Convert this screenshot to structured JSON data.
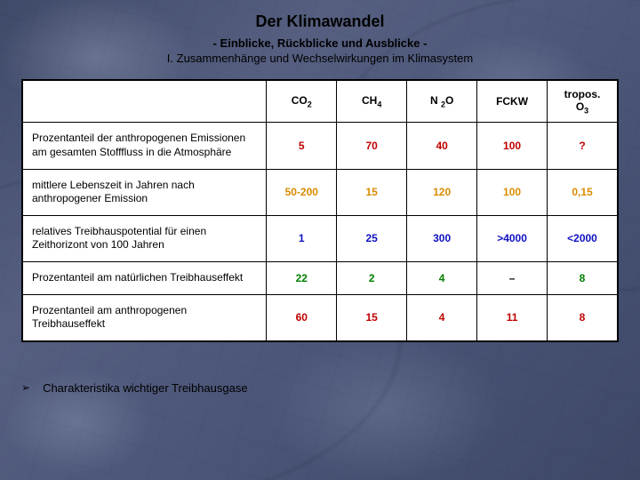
{
  "header": {
    "title": "Der Klimawandel",
    "subtitle": "- Einblicke, Rückblicke und Ausblicke -",
    "chapter": "I. Zusammenhänge und Wechselwirkungen im Klimasystem"
  },
  "table": {
    "columns": [
      {
        "label": "",
        "sub": ""
      },
      {
        "label": "CO",
        "sub": "2"
      },
      {
        "label": "CH",
        "sub": "4"
      },
      {
        "label": "N ",
        "sub": "2",
        "tail": "O"
      },
      {
        "label": "FCKW",
        "sub": ""
      },
      {
        "label": "tropos.",
        "sub2line": true,
        "tail": "O",
        "sub": "3"
      }
    ],
    "rows": [
      {
        "label": "Prozentanteil der anthropogenen Emissionen am gesamten Stofffluss in die Atmosphäre",
        "cells": [
          {
            "v": "5",
            "color": "#c00000"
          },
          {
            "v": "70",
            "color": "#c00000"
          },
          {
            "v": "40",
            "color": "#c00000"
          },
          {
            "v": "100",
            "color": "#c00000"
          },
          {
            "v": "?",
            "color": "#c00000"
          }
        ]
      },
      {
        "label": "mittlere Lebenszeit in Jahren nach anthropogener Emission",
        "cells": [
          {
            "v": "50-200",
            "color": "#d98b00"
          },
          {
            "v": "15",
            "color": "#d98b00"
          },
          {
            "v": "120",
            "color": "#d98b00"
          },
          {
            "v": "100",
            "color": "#d98b00"
          },
          {
            "v": "0,15",
            "color": "#d98b00"
          }
        ]
      },
      {
        "label": "relatives Treibhauspotential für einen Zeithorizont von 100 Jahren",
        "cells": [
          {
            "v": "1",
            "color": "#1010c0"
          },
          {
            "v": "25",
            "color": "#1010c0"
          },
          {
            "v": "300",
            "color": "#1010c0"
          },
          {
            "v": ">4000",
            "color": "#1010c0"
          },
          {
            "v": "<2000",
            "color": "#1010c0"
          }
        ]
      },
      {
        "label": "Prozentanteil am natürlichen Treibhauseffekt",
        "cells": [
          {
            "v": "22",
            "color": "#008000"
          },
          {
            "v": "2",
            "color": "#008000"
          },
          {
            "v": "4",
            "color": "#008000"
          },
          {
            "v": "–",
            "color": "#000000"
          },
          {
            "v": "8",
            "color": "#008000"
          }
        ]
      },
      {
        "label": "Prozentanteil am anthropogenen Treibhauseffekt",
        "cells": [
          {
            "v": "60",
            "color": "#c00000"
          },
          {
            "v": "15",
            "color": "#c00000"
          },
          {
            "v": "4",
            "color": "#c00000"
          },
          {
            "v": "11",
            "color": "#c00000"
          },
          {
            "v": "8",
            "color": "#c00000"
          }
        ]
      }
    ]
  },
  "bullet": {
    "marker": "➢",
    "text": "Charakteristika wichtiger Treibhausgase"
  },
  "style": {
    "title_fontsize": 18,
    "subtitle_fontsize": 13,
    "body_fontsize": 12,
    "background_base": "#4a5578",
    "table_bg": "#ffffff",
    "border_color": "#000000"
  }
}
